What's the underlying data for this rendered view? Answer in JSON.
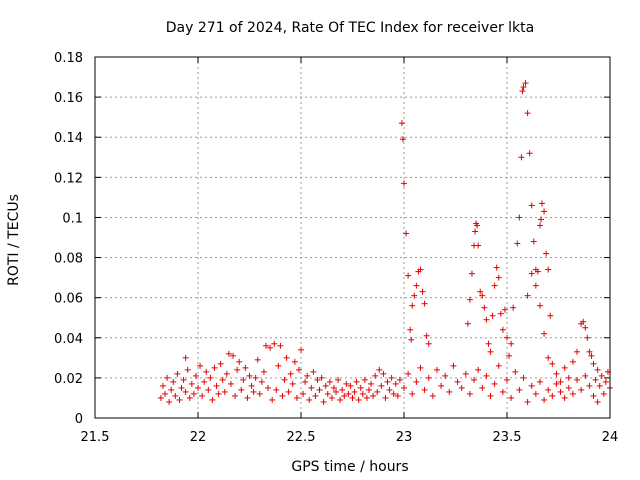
{
  "chart_data": {
    "type": "scatter",
    "title": "Day 271 of 2024, Rate Of TEC Index for receiver lkta",
    "xlabel": "GPS time / hours",
    "ylabel": "ROTI / TECUs",
    "xlim": [
      21.5,
      24
    ],
    "ylim": [
      0,
      0.18
    ],
    "xticks": [
      "21.5",
      "22",
      "22.5",
      "23",
      "23.5",
      "24"
    ],
    "yticks": [
      "0",
      "0.02",
      "0.04",
      "0.06",
      "0.08",
      "0.1",
      "0.12",
      "0.14",
      "0.16",
      "0.18"
    ],
    "xtick_values": [
      21.5,
      22,
      22.5,
      23,
      23.5,
      24
    ],
    "ytick_values": [
      0,
      0.02,
      0.04,
      0.06,
      0.08,
      0.1,
      0.12,
      0.14,
      0.16,
      0.18
    ],
    "grid": true,
    "marker": "+",
    "color": "#e60000",
    "series": [
      {
        "name": "ROTI",
        "points": [
          [
            21.82,
            0.01
          ],
          [
            21.83,
            0.016
          ],
          [
            21.84,
            0.012
          ],
          [
            21.85,
            0.02
          ],
          [
            21.86,
            0.008
          ],
          [
            21.87,
            0.014
          ],
          [
            21.88,
            0.018
          ],
          [
            21.89,
            0.011
          ],
          [
            21.9,
            0.022
          ],
          [
            21.91,
            0.009
          ],
          [
            21.92,
            0.015
          ],
          [
            21.93,
            0.019
          ],
          [
            21.94,
            0.013
          ],
          [
            21.95,
            0.024
          ],
          [
            21.96,
            0.01
          ],
          [
            21.97,
            0.017
          ],
          [
            21.94,
            0.03
          ],
          [
            21.98,
            0.012
          ],
          [
            21.99,
            0.021
          ],
          [
            22.0,
            0.015
          ],
          [
            22.01,
            0.026
          ],
          [
            22.02,
            0.011
          ],
          [
            22.03,
            0.018
          ],
          [
            22.04,
            0.023
          ],
          [
            22.05,
            0.014
          ],
          [
            22.06,
            0.02
          ],
          [
            22.07,
            0.009
          ],
          [
            22.08,
            0.025
          ],
          [
            22.09,
            0.016
          ],
          [
            22.1,
            0.012
          ],
          [
            22.11,
            0.027
          ],
          [
            22.12,
            0.019
          ],
          [
            22.13,
            0.013
          ],
          [
            22.14,
            0.022
          ],
          [
            22.15,
            0.032
          ],
          [
            22.16,
            0.017
          ],
          [
            22.17,
            0.031
          ],
          [
            22.18,
            0.011
          ],
          [
            22.19,
            0.024
          ],
          [
            22.2,
            0.028
          ],
          [
            22.21,
            0.014
          ],
          [
            22.22,
            0.019
          ],
          [
            22.23,
            0.025
          ],
          [
            22.24,
            0.01
          ],
          [
            22.25,
            0.021
          ],
          [
            22.26,
            0.016
          ],
          [
            22.27,
            0.013
          ],
          [
            22.28,
            0.02
          ],
          [
            22.29,
            0.029
          ],
          [
            22.3,
            0.012
          ],
          [
            22.31,
            0.018
          ],
          [
            22.32,
            0.023
          ],
          [
            22.33,
            0.036
          ],
          [
            22.34,
            0.015
          ],
          [
            22.35,
            0.035
          ],
          [
            22.36,
            0.009
          ],
          [
            22.37,
            0.037
          ],
          [
            22.38,
            0.014
          ],
          [
            22.39,
            0.026
          ],
          [
            22.4,
            0.036
          ],
          [
            22.41,
            0.011
          ],
          [
            22.42,
            0.019
          ],
          [
            22.43,
            0.03
          ],
          [
            22.44,
            0.013
          ],
          [
            22.45,
            0.022
          ],
          [
            22.46,
            0.017
          ],
          [
            22.47,
            0.028
          ],
          [
            22.48,
            0.01
          ],
          [
            22.49,
            0.024
          ],
          [
            22.5,
            0.034
          ],
          [
            22.51,
            0.012
          ],
          [
            22.52,
            0.018
          ],
          [
            22.53,
            0.021
          ],
          [
            22.54,
            0.009
          ],
          [
            22.55,
            0.015
          ],
          [
            22.56,
            0.023
          ],
          [
            22.57,
            0.011
          ],
          [
            22.58,
            0.019
          ],
          [
            22.59,
            0.014
          ],
          [
            22.6,
            0.02
          ],
          [
            22.61,
            0.008
          ],
          [
            22.62,
            0.016
          ],
          [
            22.63,
            0.012
          ],
          [
            22.64,
            0.018
          ],
          [
            22.65,
            0.01
          ],
          [
            22.66,
            0.015
          ],
          [
            22.67,
            0.013
          ],
          [
            22.68,
            0.019
          ],
          [
            22.69,
            0.009
          ],
          [
            22.7,
            0.014
          ],
          [
            22.71,
            0.011
          ],
          [
            22.72,
            0.017
          ],
          [
            22.73,
            0.012
          ],
          [
            22.74,
            0.016
          ],
          [
            22.75,
            0.01
          ],
          [
            22.76,
            0.013
          ],
          [
            22.77,
            0.018
          ],
          [
            22.78,
            0.009
          ],
          [
            22.79,
            0.015
          ],
          [
            22.8,
            0.012
          ],
          [
            22.81,
            0.019
          ],
          [
            22.82,
            0.01
          ],
          [
            22.83,
            0.014
          ],
          [
            22.84,
            0.017
          ],
          [
            22.85,
            0.011
          ],
          [
            22.86,
            0.021
          ],
          [
            22.87,
            0.013
          ],
          [
            22.88,
            0.024
          ],
          [
            22.89,
            0.016
          ],
          [
            22.9,
            0.022
          ],
          [
            22.91,
            0.01
          ],
          [
            22.92,
            0.018
          ],
          [
            22.93,
            0.014
          ],
          [
            22.94,
            0.02
          ],
          [
            22.95,
            0.012
          ],
          [
            22.96,
            0.017
          ],
          [
            22.97,
            0.011
          ],
          [
            22.98,
            0.019
          ],
          [
            22.99,
            0.147
          ],
          [
            22.995,
            0.139
          ],
          [
            23.0,
            0.117
          ],
          [
            23.01,
            0.092
          ],
          [
            23.02,
            0.071
          ],
          [
            23.03,
            0.044
          ],
          [
            23.035,
            0.039
          ],
          [
            23.04,
            0.056
          ],
          [
            23.05,
            0.061
          ],
          [
            23.06,
            0.066
          ],
          [
            23.07,
            0.073
          ],
          [
            23.08,
            0.074
          ],
          [
            23.09,
            0.063
          ],
          [
            23.1,
            0.057
          ],
          [
            23.11,
            0.041
          ],
          [
            23.12,
            0.037
          ],
          [
            23.0,
            0.015
          ],
          [
            23.02,
            0.022
          ],
          [
            23.04,
            0.012
          ],
          [
            23.06,
            0.018
          ],
          [
            23.08,
            0.025
          ],
          [
            23.1,
            0.014
          ],
          [
            23.12,
            0.02
          ],
          [
            23.14,
            0.011
          ],
          [
            23.16,
            0.024
          ],
          [
            23.18,
            0.016
          ],
          [
            23.2,
            0.021
          ],
          [
            23.22,
            0.013
          ],
          [
            23.24,
            0.026
          ],
          [
            23.26,
            0.018
          ],
          [
            23.28,
            0.015
          ],
          [
            23.3,
            0.022
          ],
          [
            23.31,
            0.047
          ],
          [
            23.32,
            0.059
          ],
          [
            23.33,
            0.072
          ],
          [
            23.34,
            0.086
          ],
          [
            23.345,
            0.093
          ],
          [
            23.35,
            0.097
          ],
          [
            23.355,
            0.096
          ],
          [
            23.36,
            0.086
          ],
          [
            23.37,
            0.063
          ],
          [
            23.38,
            0.061
          ],
          [
            23.39,
            0.055
          ],
          [
            23.4,
            0.049
          ],
          [
            23.41,
            0.037
          ],
          [
            23.42,
            0.033
          ],
          [
            23.43,
            0.051
          ],
          [
            23.44,
            0.066
          ],
          [
            23.45,
            0.075
          ],
          [
            23.46,
            0.07
          ],
          [
            23.47,
            0.052
          ],
          [
            23.48,
            0.044
          ],
          [
            23.49,
            0.054
          ],
          [
            23.5,
            0.04
          ],
          [
            23.51,
            0.031
          ],
          [
            23.52,
            0.037
          ],
          [
            23.53,
            0.055
          ],
          [
            23.55,
            0.087
          ],
          [
            23.56,
            0.1
          ],
          [
            23.57,
            0.13
          ],
          [
            23.575,
            0.163
          ],
          [
            23.58,
            0.165
          ],
          [
            23.59,
            0.167
          ],
          [
            23.6,
            0.152
          ],
          [
            23.61,
            0.132
          ],
          [
            23.62,
            0.106
          ],
          [
            23.63,
            0.088
          ],
          [
            23.64,
            0.074
          ],
          [
            23.65,
            0.073
          ],
          [
            23.66,
            0.096
          ],
          [
            23.665,
            0.099
          ],
          [
            23.67,
            0.107
          ],
          [
            23.68,
            0.103
          ],
          [
            23.69,
            0.082
          ],
          [
            23.7,
            0.074
          ],
          [
            23.71,
            0.051
          ],
          [
            23.6,
            0.061
          ],
          [
            23.62,
            0.072
          ],
          [
            23.64,
            0.066
          ],
          [
            23.66,
            0.056
          ],
          [
            23.68,
            0.042
          ],
          [
            23.7,
            0.03
          ],
          [
            23.72,
            0.027
          ],
          [
            23.74,
            0.022
          ],
          [
            23.76,
            0.018
          ],
          [
            23.78,
            0.025
          ],
          [
            23.8,
            0.02
          ],
          [
            23.82,
            0.028
          ],
          [
            23.84,
            0.033
          ],
          [
            23.86,
            0.047
          ],
          [
            23.87,
            0.048
          ],
          [
            23.88,
            0.045
          ],
          [
            23.89,
            0.04
          ],
          [
            23.9,
            0.033
          ],
          [
            23.91,
            0.031
          ],
          [
            23.92,
            0.027
          ],
          [
            23.93,
            0.019
          ],
          [
            23.94,
            0.024
          ],
          [
            23.95,
            0.016
          ],
          [
            23.96,
            0.021
          ],
          [
            23.97,
            0.012
          ],
          [
            23.98,
            0.018
          ],
          [
            23.99,
            0.023
          ],
          [
            24.0,
            0.015
          ],
          [
            23.32,
            0.012
          ],
          [
            23.34,
            0.019
          ],
          [
            23.36,
            0.024
          ],
          [
            23.38,
            0.015
          ],
          [
            23.4,
            0.021
          ],
          [
            23.42,
            0.011
          ],
          [
            23.44,
            0.017
          ],
          [
            23.46,
            0.026
          ],
          [
            23.48,
            0.013
          ],
          [
            23.5,
            0.019
          ],
          [
            23.52,
            0.01
          ],
          [
            23.54,
            0.023
          ],
          [
            23.56,
            0.014
          ],
          [
            23.58,
            0.02
          ],
          [
            23.6,
            0.008
          ],
          [
            23.62,
            0.016
          ],
          [
            23.64,
            0.012
          ],
          [
            23.66,
            0.018
          ],
          [
            23.68,
            0.009
          ],
          [
            23.7,
            0.014
          ],
          [
            23.72,
            0.011
          ],
          [
            23.74,
            0.017
          ],
          [
            23.76,
            0.013
          ],
          [
            23.78,
            0.01
          ],
          [
            23.8,
            0.015
          ],
          [
            23.82,
            0.012
          ],
          [
            23.84,
            0.019
          ],
          [
            23.86,
            0.014
          ],
          [
            23.88,
            0.021
          ],
          [
            23.9,
            0.016
          ],
          [
            23.92,
            0.011
          ],
          [
            23.94,
            0.008
          ]
        ]
      }
    ]
  }
}
